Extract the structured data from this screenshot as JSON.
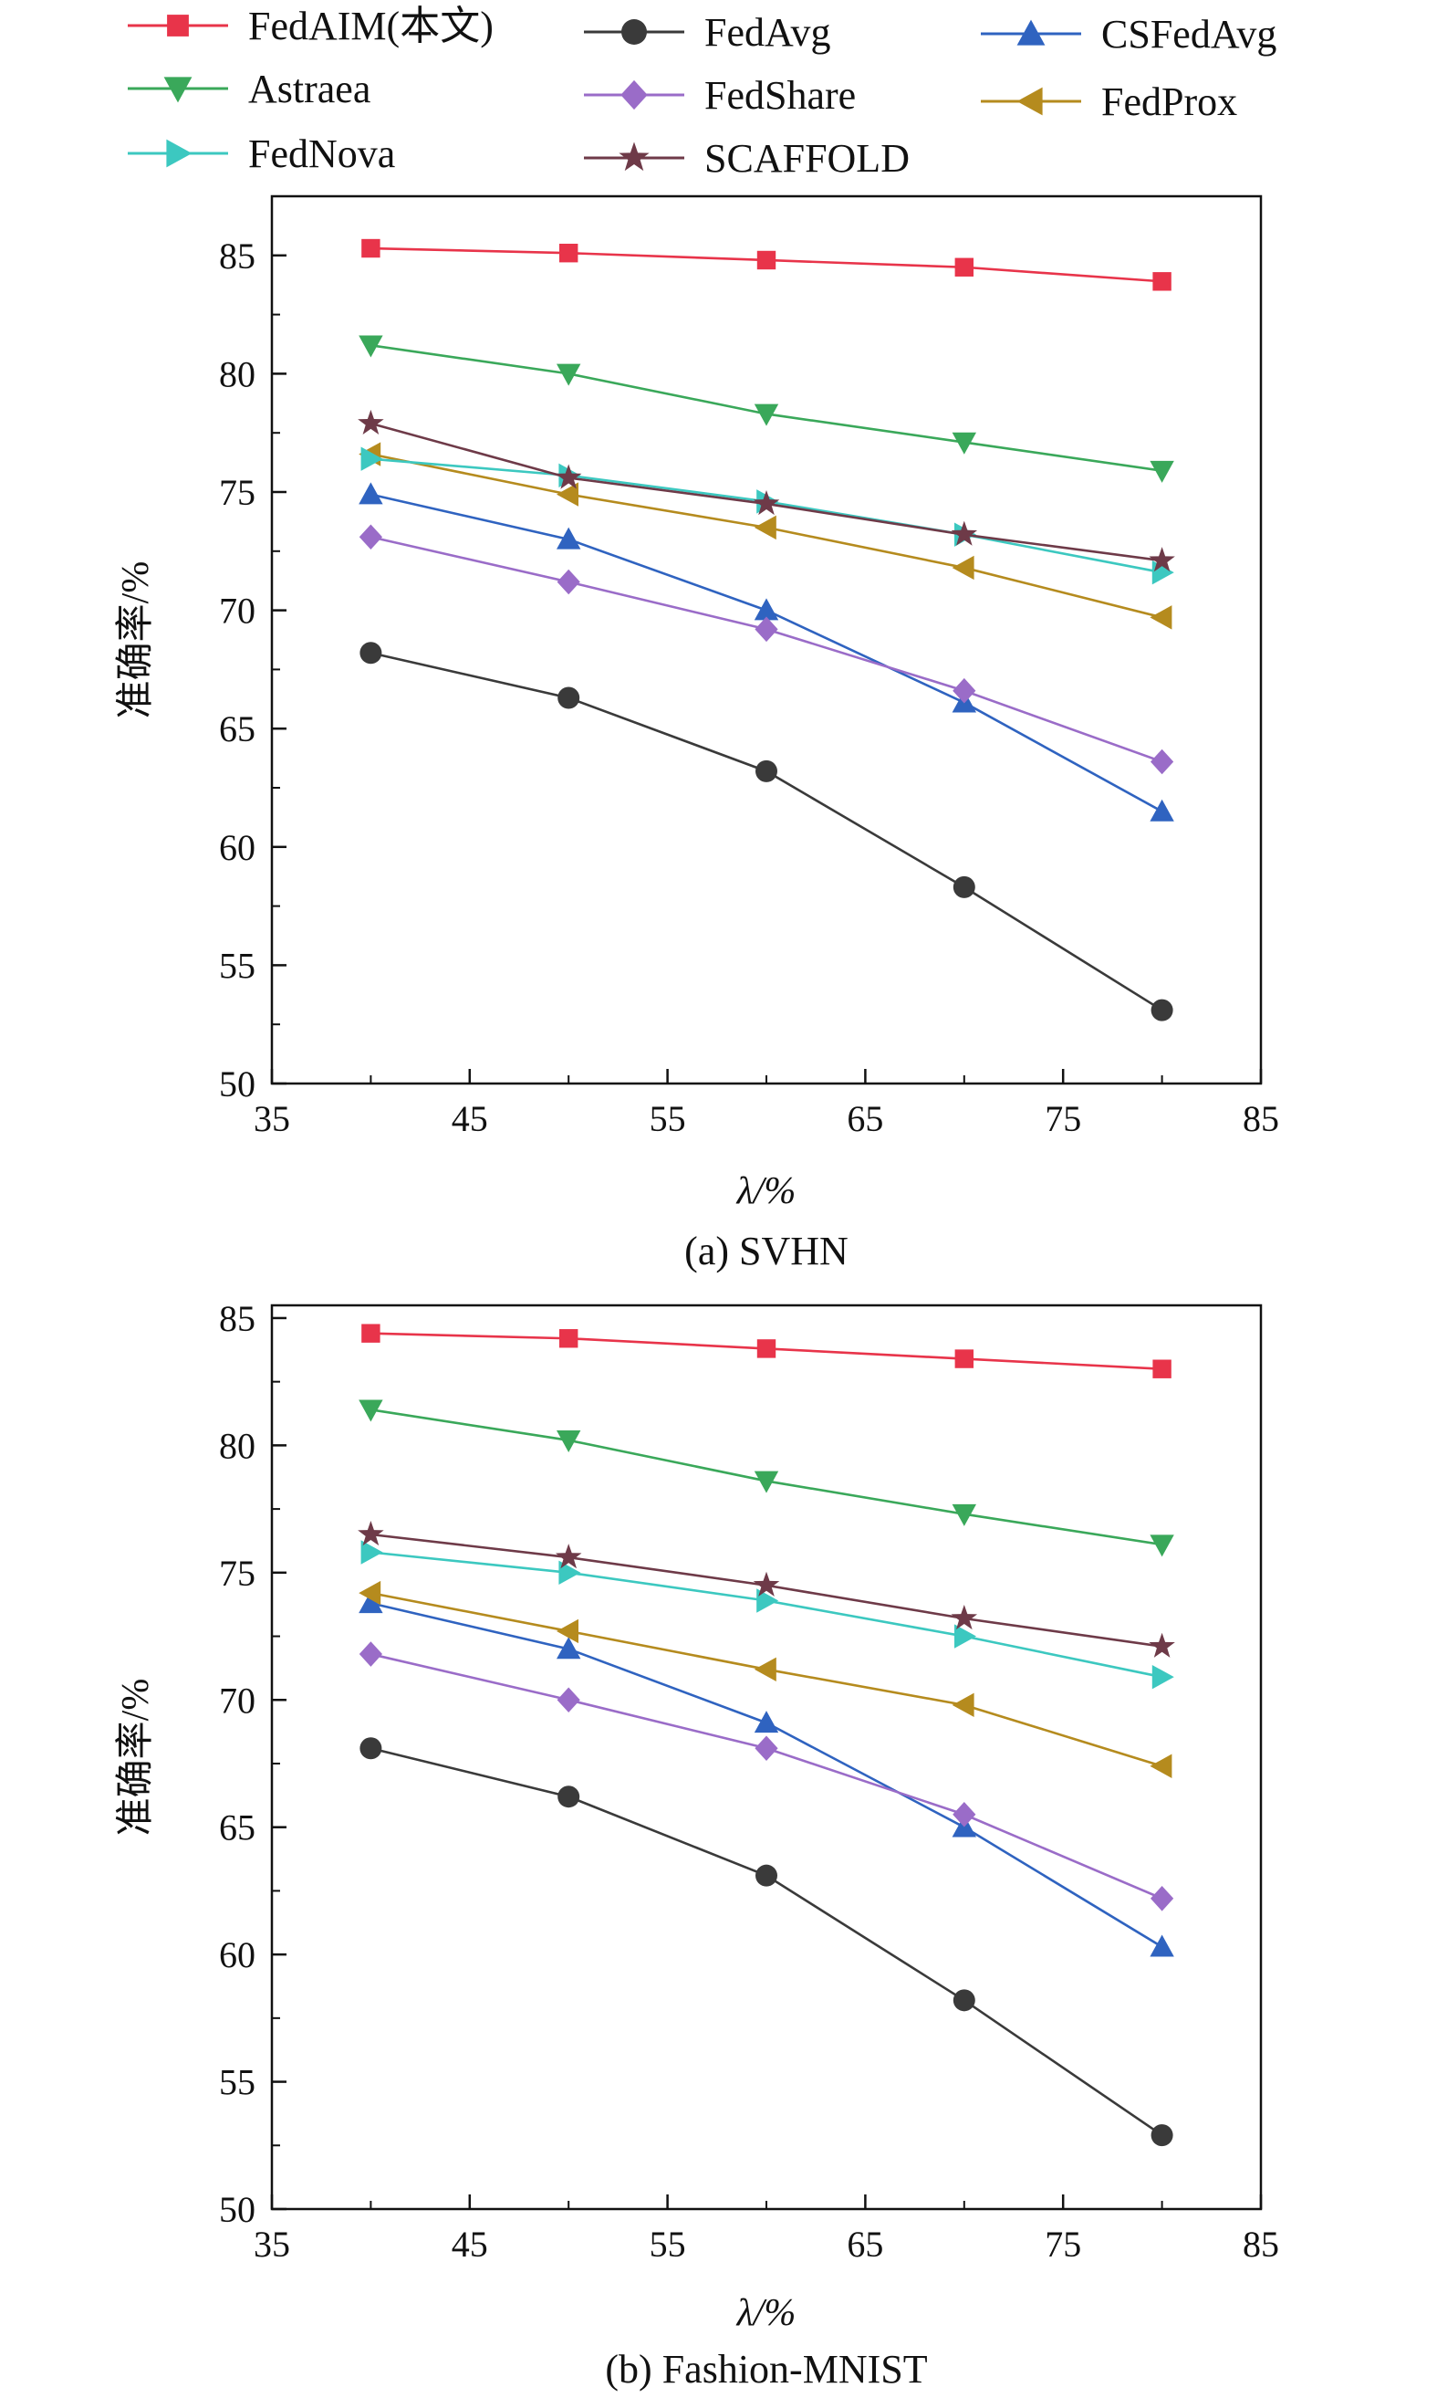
{
  "chart_data": [
    {
      "type": "line",
      "caption": "(a) SVHN",
      "xlabel": "λ/%",
      "ylabel": "准确率/%",
      "xlim": [
        35,
        85
      ],
      "ylim": [
        50,
        87.5
      ],
      "xticks": [
        35,
        45,
        55,
        65,
        75,
        85
      ],
      "yticks": [
        50,
        55,
        60,
        65,
        70,
        75,
        80,
        85
      ],
      "x": [
        40,
        50,
        60,
        70,
        80
      ],
      "series": [
        {
          "name": "FedAIM(本文)",
          "values": [
            85.3,
            85.1,
            84.8,
            84.5,
            83.9
          ]
        },
        {
          "name": "FedAvg",
          "values": [
            68.2,
            66.3,
            63.2,
            58.3,
            53.1
          ]
        },
        {
          "name": "CSFedAvg",
          "values": [
            74.9,
            73.0,
            70.0,
            66.1,
            61.5
          ]
        },
        {
          "name": "Astraea",
          "values": [
            81.2,
            80.0,
            78.3,
            77.1,
            75.9
          ]
        },
        {
          "name": "FedShare",
          "values": [
            73.1,
            71.2,
            69.2,
            66.6,
            63.6
          ]
        },
        {
          "name": "FedProx",
          "values": [
            76.6,
            74.9,
            73.5,
            71.8,
            69.7
          ]
        },
        {
          "name": "FedNova",
          "values": [
            76.4,
            75.7,
            74.6,
            73.2,
            71.6
          ]
        },
        {
          "name": "SCAFFOLD",
          "values": [
            77.9,
            75.6,
            74.5,
            73.2,
            72.1
          ]
        }
      ]
    },
    {
      "type": "line",
      "caption": "(b) Fashion-MNIST",
      "xlabel": "λ/%",
      "ylabel": "准确率/%",
      "xlim": [
        35,
        85
      ],
      "ylim": [
        50,
        85.5
      ],
      "xticks": [
        35,
        45,
        55,
        65,
        75,
        85
      ],
      "yticks": [
        50,
        55,
        60,
        65,
        70,
        75,
        80,
        85
      ],
      "x": [
        40,
        50,
        60,
        70,
        80
      ],
      "series": [
        {
          "name": "FedAIM(本文)",
          "values": [
            84.4,
            84.2,
            83.8,
            83.4,
            83.0
          ]
        },
        {
          "name": "FedAvg",
          "values": [
            68.1,
            66.2,
            63.1,
            58.2,
            52.9
          ]
        },
        {
          "name": "CSFedAvg",
          "values": [
            73.8,
            72.0,
            69.1,
            65.0,
            60.3
          ]
        },
        {
          "name": "Astraea",
          "values": [
            81.4,
            80.2,
            78.6,
            77.3,
            76.1
          ]
        },
        {
          "name": "FedShare",
          "values": [
            71.8,
            70.0,
            68.1,
            65.5,
            62.2
          ]
        },
        {
          "name": "FedProx",
          "values": [
            74.2,
            72.7,
            71.2,
            69.8,
            67.4
          ]
        },
        {
          "name": "FedNova",
          "values": [
            75.8,
            75.0,
            73.9,
            72.5,
            70.9
          ]
        },
        {
          "name": "SCAFFOLD",
          "values": [
            76.5,
            75.6,
            74.5,
            73.2,
            72.1
          ]
        }
      ]
    }
  ],
  "legend": [
    {
      "name": "FedAIM(本文)",
      "color": "#e8344a",
      "marker": "square"
    },
    {
      "name": "FedAvg",
      "color": "#3a3a3a",
      "marker": "circle"
    },
    {
      "name": "CSFedAvg",
      "color": "#2f63c0",
      "marker": "triangle-up"
    },
    {
      "name": "Astraea",
      "color": "#3aa85a",
      "marker": "triangle-down"
    },
    {
      "name": "FedShare",
      "color": "#9a6cc8",
      "marker": "diamond"
    },
    {
      "name": "FedProx",
      "color": "#b58b1e",
      "marker": "triangle-left"
    },
    {
      "name": "FedNova",
      "color": "#3cc8c0",
      "marker": "triangle-right"
    },
    {
      "name": "SCAFFOLD",
      "color": "#6e3a48",
      "marker": "star"
    }
  ]
}
